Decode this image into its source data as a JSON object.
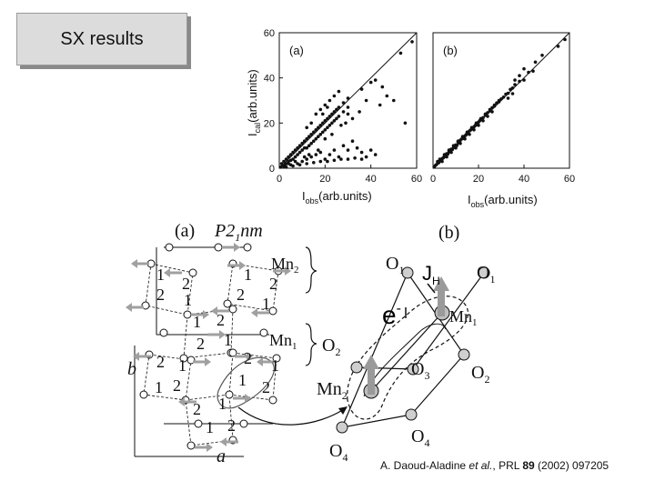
{
  "slide": {
    "title": "SX results"
  },
  "chart_data": [
    {
      "type": "scatter",
      "panel_label": "(a)",
      "xlabel_main": "I",
      "xlabel_sub": "obs",
      "xlabel_rest": "(arb.units)",
      "ylabel_main": "I",
      "ylabel_sub": "cal",
      "ylabel_rest": "(arb.units)",
      "xlim": [
        0,
        60
      ],
      "ylim": [
        0,
        60
      ],
      "xticks": [
        0,
        20,
        40,
        60
      ],
      "yticks": [
        0,
        20,
        40,
        60
      ],
      "reference_line": "y = x",
      "points": [
        [
          0.5,
          0.5
        ],
        [
          1,
          2
        ],
        [
          1.5,
          1
        ],
        [
          2,
          3
        ],
        [
          2.5,
          1.5
        ],
        [
          3,
          4
        ],
        [
          3,
          2
        ],
        [
          4,
          5
        ],
        [
          4,
          3
        ],
        [
          5,
          6
        ],
        [
          5,
          3.5
        ],
        [
          6,
          7
        ],
        [
          6,
          4
        ],
        [
          7,
          8
        ],
        [
          7,
          5
        ],
        [
          8,
          9
        ],
        [
          8,
          6
        ],
        [
          9,
          10
        ],
        [
          9,
          7
        ],
        [
          10,
          11
        ],
        [
          10,
          8
        ],
        [
          11,
          12
        ],
        [
          11,
          9
        ],
        [
          12,
          13
        ],
        [
          12,
          9
        ],
        [
          13,
          14
        ],
        [
          13,
          10
        ],
        [
          14,
          15
        ],
        [
          14,
          11
        ],
        [
          15,
          16
        ],
        [
          15,
          12
        ],
        [
          16,
          17
        ],
        [
          16,
          13
        ],
        [
          17,
          18
        ],
        [
          17,
          14
        ],
        [
          18,
          19
        ],
        [
          18,
          15
        ],
        [
          19,
          20
        ],
        [
          19,
          16
        ],
        [
          20,
          21
        ],
        [
          20,
          17
        ],
        [
          21,
          22
        ],
        [
          21,
          18
        ],
        [
          22,
          23
        ],
        [
          22,
          19
        ],
        [
          23,
          24
        ],
        [
          23,
          20
        ],
        [
          24,
          25
        ],
        [
          24,
          21
        ],
        [
          25,
          26
        ],
        [
          25,
          22
        ],
        [
          26,
          27
        ],
        [
          26,
          23
        ],
        [
          28,
          29
        ],
        [
          28,
          25
        ],
        [
          30,
          31
        ],
        [
          30,
          27
        ],
        [
          5,
          1.5
        ],
        [
          8,
          2
        ],
        [
          10,
          3
        ],
        [
          12,
          4
        ],
        [
          14,
          5
        ],
        [
          16,
          6
        ],
        [
          18,
          7
        ],
        [
          20,
          4
        ],
        [
          22,
          6
        ],
        [
          24,
          8
        ],
        [
          26,
          5
        ],
        [
          28,
          10
        ],
        [
          30,
          8
        ],
        [
          32,
          12
        ],
        [
          34,
          9
        ],
        [
          36,
          7
        ],
        [
          38,
          5
        ],
        [
          40,
          8
        ],
        [
          42,
          6
        ],
        [
          3,
          0.5
        ],
        [
          6,
          1
        ],
        [
          9,
          1.5
        ],
        [
          12,
          2
        ],
        [
          15,
          2.5
        ],
        [
          18,
          3
        ],
        [
          21,
          3
        ],
        [
          24,
          3.5
        ],
        [
          27,
          4
        ],
        [
          30,
          4
        ],
        [
          33,
          4.5
        ],
        [
          36,
          4
        ],
        [
          16,
          24
        ],
        [
          18,
          26
        ],
        [
          20,
          28
        ],
        [
          14,
          20
        ],
        [
          12,
          18
        ],
        [
          22,
          30
        ],
        [
          24,
          32
        ],
        [
          26,
          34
        ],
        [
          19,
          24
        ],
        [
          21,
          27
        ],
        [
          40,
          38
        ],
        [
          45,
          36
        ],
        [
          47,
          32
        ],
        [
          50,
          30
        ],
        [
          55,
          20
        ],
        [
          44,
          28
        ],
        [
          38,
          30
        ],
        [
          35,
          25
        ],
        [
          32,
          22
        ],
        [
          29,
          20
        ],
        [
          36,
          35
        ],
        [
          42,
          39
        ],
        [
          53,
          51
        ],
        [
          58,
          56
        ],
        [
          30,
          24
        ],
        [
          27,
          19
        ],
        [
          23,
          15
        ],
        [
          20,
          13
        ],
        [
          4,
          2
        ],
        [
          7,
          3
        ],
        [
          2,
          0.8
        ],
        [
          11,
          5
        ],
        [
          13,
          6
        ],
        [
          17,
          8
        ]
      ]
    },
    {
      "type": "scatter",
      "panel_label": "(b)",
      "xlabel_main": "I",
      "xlabel_sub": "obs",
      "xlabel_rest": "(arb.units)",
      "xlim": [
        0,
        60
      ],
      "ylim": [
        0,
        60
      ],
      "xticks": [
        0,
        20,
        40,
        60
      ],
      "reference_line": "y = x",
      "points": [
        [
          0.5,
          0.5
        ],
        [
          1,
          1.2
        ],
        [
          1.5,
          1.6
        ],
        [
          2,
          2.2
        ],
        [
          2.5,
          2.4
        ],
        [
          3,
          3.3
        ],
        [
          3.5,
          3.2
        ],
        [
          4,
          4.2
        ],
        [
          4.5,
          4.6
        ],
        [
          5,
          5.3
        ],
        [
          5.5,
          5.2
        ],
        [
          6,
          6.4
        ],
        [
          6.5,
          6.3
        ],
        [
          7,
          7.2
        ],
        [
          7.5,
          7.7
        ],
        [
          8,
          8.4
        ],
        [
          8.5,
          8.3
        ],
        [
          9,
          9.2
        ],
        [
          9.5,
          9.8
        ],
        [
          10,
          10.3
        ],
        [
          10.5,
          10.1
        ],
        [
          11,
          11.5
        ],
        [
          11.5,
          11.2
        ],
        [
          12,
          12.4
        ],
        [
          12.5,
          12.9
        ],
        [
          13,
          13.2
        ],
        [
          13.5,
          13.8
        ],
        [
          14,
          14.3
        ],
        [
          14.5,
          14.8
        ],
        [
          15,
          15.5
        ],
        [
          15.5,
          15.3
        ],
        [
          16,
          16.5
        ],
        [
          16.5,
          16.9
        ],
        [
          17,
          17.4
        ],
        [
          17.5,
          17.8
        ],
        [
          18,
          18.3
        ],
        [
          18.5,
          18.9
        ],
        [
          19,
          19.6
        ],
        [
          19.5,
          19.2
        ],
        [
          20,
          20.4
        ],
        [
          20.5,
          21
        ],
        [
          21,
          21.5
        ],
        [
          22,
          22.4
        ],
        [
          23,
          23.5
        ],
        [
          24,
          24.6
        ],
        [
          25,
          25.4
        ],
        [
          26,
          26.8
        ],
        [
          27,
          27.5
        ],
        [
          28,
          28.9
        ],
        [
          29,
          29.4
        ],
        [
          30,
          30.7
        ],
        [
          31,
          31.5
        ],
        [
          32,
          32.8
        ],
        [
          33,
          33.2
        ],
        [
          34,
          34.9
        ],
        [
          35,
          35.5
        ],
        [
          36,
          37
        ],
        [
          38,
          38.5
        ],
        [
          40,
          39
        ],
        [
          42,
          42.5
        ],
        [
          44,
          43
        ],
        [
          45,
          47
        ],
        [
          48,
          50
        ],
        [
          55,
          54
        ],
        [
          58,
          57
        ],
        [
          40,
          44
        ],
        [
          38,
          41
        ],
        [
          36,
          39
        ],
        [
          35,
          33
        ],
        [
          33,
          31
        ],
        [
          2,
          3
        ],
        [
          4,
          3
        ],
        [
          6,
          5
        ],
        [
          8,
          7
        ],
        [
          10,
          9
        ],
        [
          12,
          11
        ],
        [
          14,
          13
        ],
        [
          16,
          15
        ],
        [
          18,
          17
        ],
        [
          20,
          19
        ],
        [
          22,
          21
        ],
        [
          24,
          23
        ],
        [
          26,
          25
        ],
        [
          3,
          4
        ],
        [
          5,
          6
        ],
        [
          7,
          8
        ],
        [
          9,
          10
        ],
        [
          11,
          12
        ],
        [
          13,
          14
        ],
        [
          15,
          16
        ],
        [
          17,
          18
        ],
        [
          19,
          20
        ],
        [
          21,
          22
        ],
        [
          23,
          24
        ],
        [
          25,
          26
        ],
        [
          27,
          28
        ],
        [
          29,
          30
        ]
      ]
    }
  ],
  "structure_figure": {
    "panel_a_label": "(a)",
    "space_group": "P2",
    "space_group_sub": "1",
    "space_group_rest": "nm",
    "mn2_label": "Mn",
    "mn2_sub": "2",
    "mn1_label": "Mn",
    "mn1_sub": "1",
    "axis_b": "b",
    "axis_a": "a",
    "site_labels": [
      {
        "t": "1",
        "x": 172,
        "y": 308
      },
      {
        "t": "2",
        "x": 172,
        "y": 330
      },
      {
        "t": "2",
        "x": 200,
        "y": 318
      },
      {
        "t": "1",
        "x": 202,
        "y": 336
      },
      {
        "t": "1",
        "x": 268,
        "y": 308
      },
      {
        "t": "2",
        "x": 296,
        "y": 318
      },
      {
        "t": "2",
        "x": 260,
        "y": 330
      },
      {
        "t": "1",
        "x": 288,
        "y": 340
      },
      {
        "t": "1",
        "x": 212,
        "y": 360
      },
      {
        "t": "2",
        "x": 238,
        "y": 358
      },
      {
        "t": "2",
        "x": 216,
        "y": 384
      },
      {
        "t": "1",
        "x": 246,
        "y": 380
      },
      {
        "t": "2",
        "x": 172,
        "y": 404
      },
      {
        "t": "1",
        "x": 196,
        "y": 408
      },
      {
        "t": "1",
        "x": 170,
        "y": 432
      },
      {
        "t": "2",
        "x": 190,
        "y": 430
      },
      {
        "t": "2",
        "x": 268,
        "y": 400
      },
      {
        "t": "1",
        "x": 298,
        "y": 408
      },
      {
        "t": "1",
        "x": 262,
        "y": 424
      },
      {
        "t": "2",
        "x": 288,
        "y": 432
      },
      {
        "t": "2",
        "x": 212,
        "y": 456
      },
      {
        "t": "1",
        "x": 240,
        "y": 450
      },
      {
        "t": "1",
        "x": 226,
        "y": 476
      },
      {
        "t": "2",
        "x": 250,
        "y": 474
      }
    ],
    "panel_b_label": "(b)",
    "o1_left": "O",
    "o1_left_sub": "1",
    "o1_right": "O",
    "o1_right_sub": "1",
    "jh_label": "J",
    "jh_sub": "H",
    "electron_label": "e",
    "electron_sup": "-",
    "mn1_b": "Mn",
    "mn1_b_sub": "1",
    "o2_left": "O",
    "o2_left_sub": "2",
    "o3": "O",
    "o3_sub": "3",
    "o2_right": "O",
    "o2_right_sub": "2",
    "mn2_b": "Mn",
    "mn2_b_sub": "2",
    "o4_right": "O",
    "o4_right_sub": "4",
    "o4_left": "O",
    "o4_left_sub": "4"
  },
  "citation": {
    "authors": "A. Daoud-Aladine",
    "etal": "et al.",
    "journal": ", PRL ",
    "volume": "89",
    "rest": " (2002) 097205"
  }
}
